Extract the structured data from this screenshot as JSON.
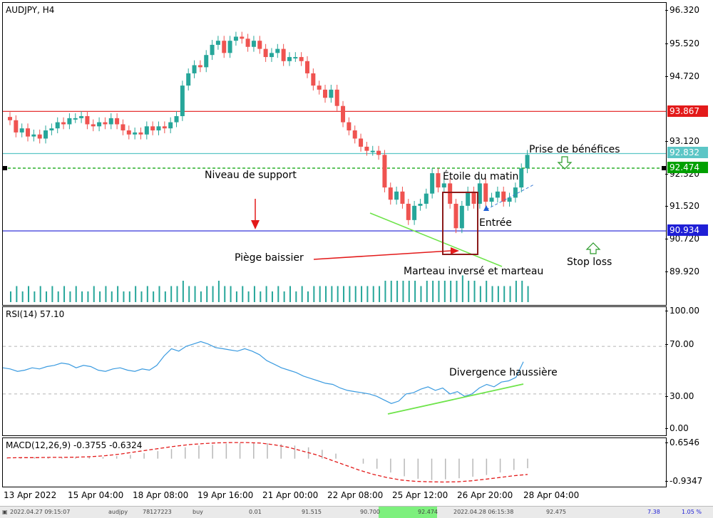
{
  "main": {
    "title": "AUDJPY, H4",
    "price_ticks": [
      "96.320",
      "95.520",
      "94.720",
      "93.120",
      "92.320",
      "91.520",
      "90.720",
      "89.920"
    ],
    "tags": [
      {
        "label": "93.867",
        "color": "#e31a1a"
      },
      {
        "label": "92.832",
        "color": "#5cc6c6"
      },
      {
        "label": "92.474",
        "color": "#00a000"
      },
      {
        "label": "90.934",
        "color": "#1f1fd6"
      }
    ],
    "annotations": {
      "support": "Niveau de support",
      "trap": "Piège baissier",
      "hammer": "Marteau inversé et marteau",
      "morning_star": "Étoile du matin",
      "entry": "Entrée",
      "take_profit": "Prise de bénéfices",
      "stop_loss": "Stop loss"
    },
    "colors": {
      "bull": "#26a69a",
      "bear": "#ef5350",
      "volume": "#26a69a"
    }
  },
  "rsi": {
    "title": "RSI(14) 57.10",
    "ticks": [
      "100.00",
      "70.00",
      "30.00",
      "0.00"
    ],
    "annotation": "Divergence haussière"
  },
  "macd": {
    "title": "MACD(12,26,9) -0.3755 -0.6324",
    "ticks": [
      "0.6546",
      "-0.9347"
    ]
  },
  "time_axis": [
    "13 Apr 2022",
    "15 Apr 04:00",
    "18 Apr 08:00",
    "19 Apr 16:00",
    "21 Apr 00:00",
    "22 Apr 08:00",
    "25 Apr 12:00",
    "26 Apr 20:00",
    "28 Apr 04:00"
  ],
  "status": {
    "start": "2022.04.27 09:15:07",
    "symbol": "audjpy",
    "ticket": "78127223",
    "type": "buy",
    "volume": "0.01",
    "sl": "91.515",
    "tp": "90.700",
    "price": "92.474",
    "time": "2022.04.28 06:15:38",
    "current": "92.475",
    "profit": "7.38",
    "pct": "1.05 %"
  },
  "chart_data": {
    "type": "candlestick",
    "title": "AUDJPY, H4",
    "ylim": [
      89.5,
      96.5
    ],
    "hlines": [
      93.867,
      92.832,
      92.474,
      90.934
    ],
    "close": [
      93.65,
      93.35,
      93.45,
      93.25,
      93.3,
      93.2,
      93.4,
      93.45,
      93.6,
      93.55,
      93.7,
      93.7,
      93.75,
      93.55,
      93.5,
      93.6,
      93.55,
      93.7,
      93.55,
      93.4,
      93.3,
      93.35,
      93.3,
      93.5,
      93.4,
      93.5,
      93.45,
      93.6,
      93.75,
      94.5,
      94.8,
      95.0,
      94.95,
      95.25,
      95.5,
      95.6,
      95.3,
      95.6,
      95.7,
      95.65,
      95.45,
      95.6,
      95.4,
      95.2,
      95.3,
      95.4,
      95.1,
      95.2,
      95.2,
      95.1,
      94.8,
      94.5,
      94.4,
      94.2,
      94.4,
      94.0,
      93.6,
      93.4,
      93.2,
      93.0,
      92.9,
      92.9,
      92.8,
      92.0,
      91.7,
      91.9,
      91.6,
      91.2,
      91.55,
      91.6,
      91.85,
      92.35,
      92.0,
      92.1,
      91.6,
      91.0,
      91.55,
      91.9,
      91.6,
      92.1,
      91.65,
      91.75,
      91.9,
      91.65,
      91.75,
      92.0,
      92.47,
      92.8
    ],
    "volume": [
      2,
      3,
      2,
      3,
      2,
      3,
      2,
      3,
      2,
      3,
      2,
      3,
      2,
      2,
      3,
      2,
      3,
      2,
      3,
      2,
      2,
      3,
      2,
      3,
      2,
      3,
      2,
      3,
      3,
      4,
      3,
      3,
      2,
      3,
      3,
      4,
      3,
      3,
      2,
      3,
      2,
      3,
      2,
      3,
      2,
      3,
      2,
      3,
      2,
      3,
      2,
      3,
      3,
      3,
      3,
      3,
      3,
      3,
      3,
      3,
      3,
      3,
      3,
      4,
      4,
      4,
      4,
      4,
      4,
      3,
      4,
      4,
      4,
      4,
      4,
      4,
      5,
      4,
      4,
      3,
      4,
      3,
      3,
      3,
      3,
      4,
      4,
      3
    ],
    "rsi": [
      52,
      51,
      49,
      50,
      52,
      51,
      53,
      54,
      56,
      55,
      52,
      54,
      53,
      50,
      49,
      51,
      52,
      50,
      49,
      51,
      50,
      54,
      62,
      68,
      66,
      70,
      72,
      74,
      72,
      69,
      68,
      67,
      66,
      68,
      66,
      63,
      58,
      55,
      52,
      50,
      48,
      45,
      43,
      41,
      39,
      38,
      35,
      33,
      32,
      31,
      30,
      28,
      25,
      22,
      24,
      30,
      31,
      34,
      36,
      33,
      35,
      30,
      32,
      28,
      30,
      35,
      38,
      36,
      40,
      41,
      44,
      57
    ],
    "macd_hist": [
      0.05,
      0.05,
      0.06,
      0.04,
      0.05,
      0.05,
      0.06,
      0.07,
      0.1,
      0.15,
      0.22,
      0.3,
      0.38,
      0.45,
      0.52,
      0.55,
      0.6,
      0.62,
      0.63,
      0.62,
      0.58,
      0.52,
      0.45,
      0.35,
      0.2,
      0.0,
      -0.2,
      -0.4,
      -0.55,
      -0.7,
      -0.8,
      -0.85,
      -0.82,
      -0.78,
      -0.72,
      -0.65,
      -0.55,
      -0.45,
      -0.38
    ],
    "macd_signal": [
      0.03,
      0.04,
      0.04,
      0.05,
      0.05,
      0.06,
      0.08,
      0.12,
      0.18,
      0.26,
      0.34,
      0.42,
      0.5,
      0.56,
      0.6,
      0.63,
      0.64,
      0.64,
      0.62,
      0.55,
      0.45,
      0.3,
      0.15,
      -0.05,
      -0.25,
      -0.45,
      -0.62,
      -0.75,
      -0.85,
      -0.9,
      -0.92,
      -0.93,
      -0.92,
      -0.88,
      -0.82,
      -0.75,
      -0.68,
      -0.63
    ],
    "rsi_levels": [
      70,
      30
    ],
    "macd_ylim": [
      -1.0,
      0.7
    ]
  }
}
